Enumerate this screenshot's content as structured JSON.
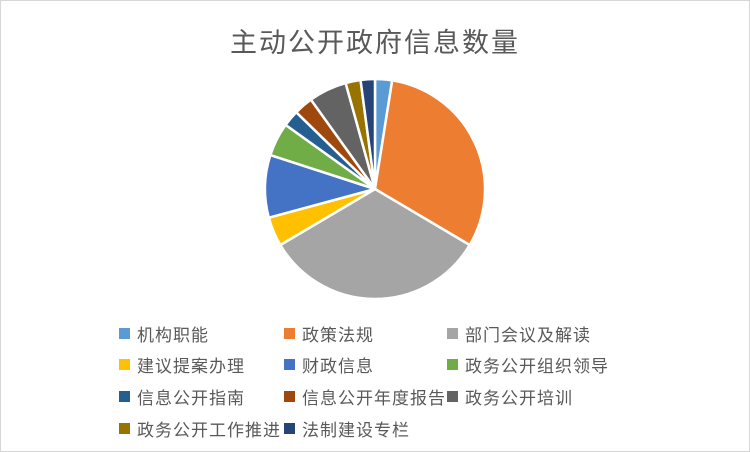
{
  "chart_data": {
    "type": "pie",
    "title": "主动公开政府信息数量",
    "legend_position": "bottom",
    "start_angle_deg": 0,
    "direction": "clockwise",
    "values_are": "estimated_percent_share",
    "series": [
      {
        "name": "机构职能",
        "value": 2.5,
        "color": "#5B9BD5"
      },
      {
        "name": "政策法规",
        "value": 31.0,
        "color": "#ED7D31"
      },
      {
        "name": "部门会议及解读",
        "value": 33.0,
        "color": "#A5A5A5"
      },
      {
        "name": "建议提案办理",
        "value": 4.3,
        "color": "#FFC000"
      },
      {
        "name": "财政信息",
        "value": 9.2,
        "color": "#4472C4"
      },
      {
        "name": "政务公开组织领导",
        "value": 4.9,
        "color": "#70AD47"
      },
      {
        "name": "信息公开指南",
        "value": 2.4,
        "color": "#255E91"
      },
      {
        "name": "信息公开年度报告",
        "value": 2.8,
        "color": "#9E480E"
      },
      {
        "name": "政务公开培训",
        "value": 5.6,
        "color": "#636363"
      },
      {
        "name": "政务公开工作推进",
        "value": 2.2,
        "color": "#997300"
      },
      {
        "name": "法制建设专栏",
        "value": 2.1,
        "color": "#264478"
      }
    ],
    "slice_separator_color": "#FFFFFF",
    "title_color": "#595959",
    "legend_text_color": "#595959",
    "frame_border_color": "#D6D6D6"
  }
}
